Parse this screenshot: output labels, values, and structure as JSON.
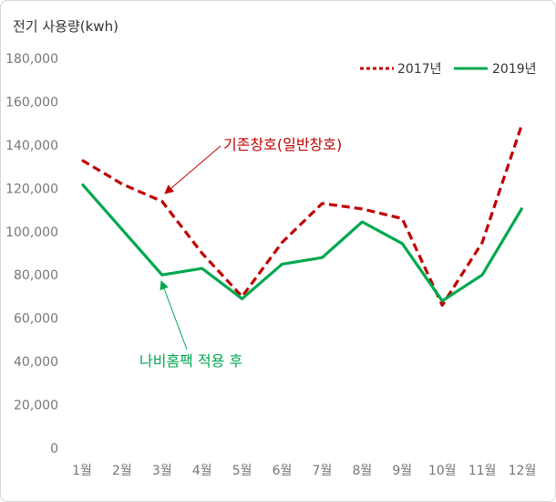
{
  "chart_data": {
    "type": "line",
    "ylabel": "전기 사용량(kwh)",
    "categories": [
      "1월",
      "2월",
      "3월",
      "4월",
      "5월",
      "6월",
      "7월",
      "8월",
      "9월",
      "10월",
      "11월",
      "12월"
    ],
    "y_ticks": [
      "0",
      "20,000",
      "40,000",
      "60,000",
      "80,000",
      "100,000",
      "120,000",
      "140,000",
      "160,000",
      "180,000"
    ],
    "ylim": [
      0,
      180000
    ],
    "grid": false,
    "legend_position": "top-right",
    "series": [
      {
        "name": "2017년",
        "style": "dashed",
        "color": "#c00000",
        "values": [
          133000,
          122000,
          114000,
          90000,
          70000,
          95000,
          113000,
          110500,
          106000,
          66000,
          95000,
          150000
        ]
      },
      {
        "name": "2019년",
        "style": "solid",
        "color": "#00a84f",
        "values": [
          122000,
          101000,
          80000,
          83000,
          69000,
          85000,
          88000,
          104500,
          94500,
          68000,
          80000,
          111000
        ]
      }
    ],
    "annotations": [
      {
        "text": "기존창호(일반창호)",
        "color": "#c00000"
      },
      {
        "text": "나비홈팩 적용 후",
        "color": "#00a84f"
      }
    ]
  }
}
